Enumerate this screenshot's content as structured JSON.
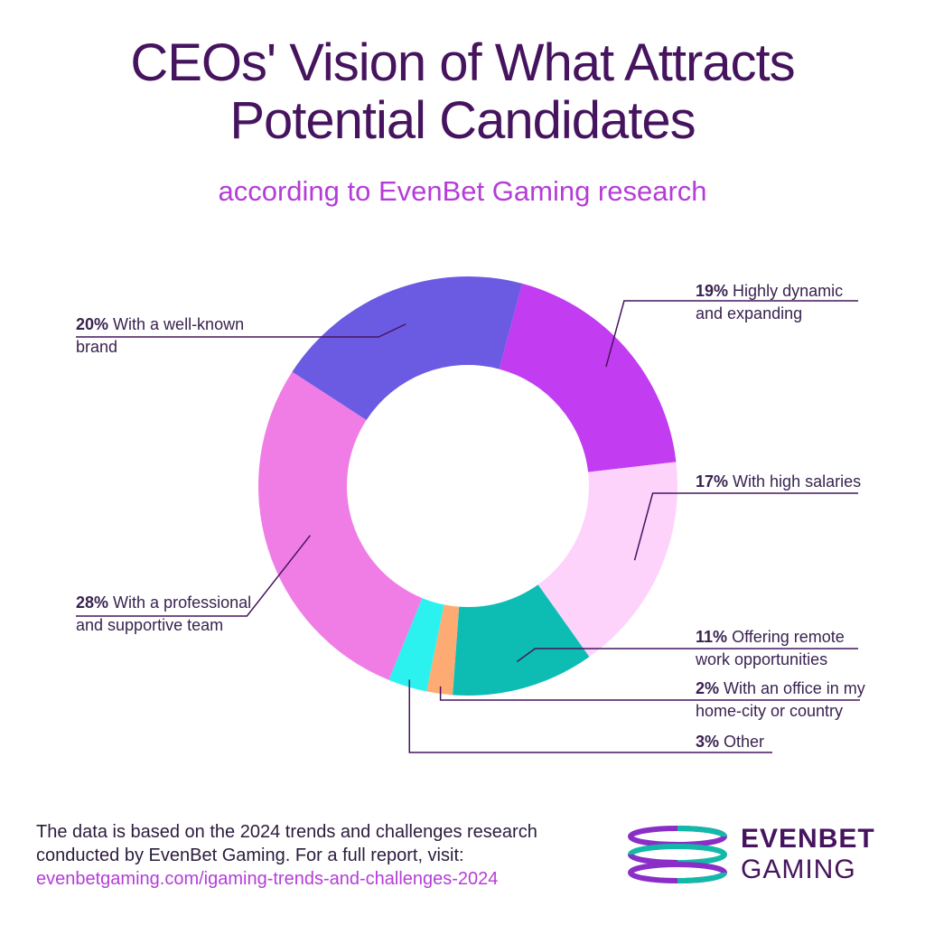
{
  "header": {
    "title_line1": "CEOs' Vision of What Attracts",
    "title_line2": "Potential Candidates",
    "subtitle": "according to EvenBet Gaming research"
  },
  "chart_data": {
    "type": "pie",
    "variant": "donut",
    "title": "CEOs' Vision of What Attracts Potential Candidates",
    "subtitle": "according to EvenBet Gaming research",
    "slices": [
      {
        "pct": "19%",
        "label_line1": "Highly dynamic",
        "label_line2": "and expanding",
        "value": 19,
        "color": "#c23cf2"
      },
      {
        "pct": "17%",
        "label_line1": "With high salaries",
        "label_line2": "",
        "value": 17,
        "color": "#fdd3fb"
      },
      {
        "pct": "11%",
        "label_line1": "Offering remote",
        "label_line2": "work opportunities",
        "value": 11,
        "color": "#0dbdb4"
      },
      {
        "pct": "2%",
        "label_line1": "With an office in my",
        "label_line2": "home-city or country",
        "value": 2,
        "color": "#fdab72"
      },
      {
        "pct": "3%",
        "label_line1": "Other",
        "label_line2": "",
        "value": 3,
        "color": "#2cf2ef"
      },
      {
        "pct": "28%",
        "label_line1": "With a professional",
        "label_line2": "and supportive team",
        "value": 28,
        "color": "#f07de6"
      },
      {
        "pct": "20%",
        "label_line1": "With a well-known",
        "label_line2": "brand",
        "value": 20,
        "color": "#6b5be2"
      }
    ]
  },
  "footer": {
    "line1": "The data is based on the 2024 trends and challenges research",
    "line2": "conducted by EvenBet Gaming. For a full report, visit:",
    "link": "evenbetgaming.com/igaming-trends-and-challenges-2024"
  },
  "logo": {
    "line1": "EVENBET",
    "line2": "GAMING",
    "colors": {
      "purple": "#8a2ec7",
      "teal": "#12b8a8",
      "text": "#46145e"
    }
  },
  "colors": {
    "title": "#46145e",
    "subtitle": "#b43dd8",
    "leader": "#46145e"
  }
}
